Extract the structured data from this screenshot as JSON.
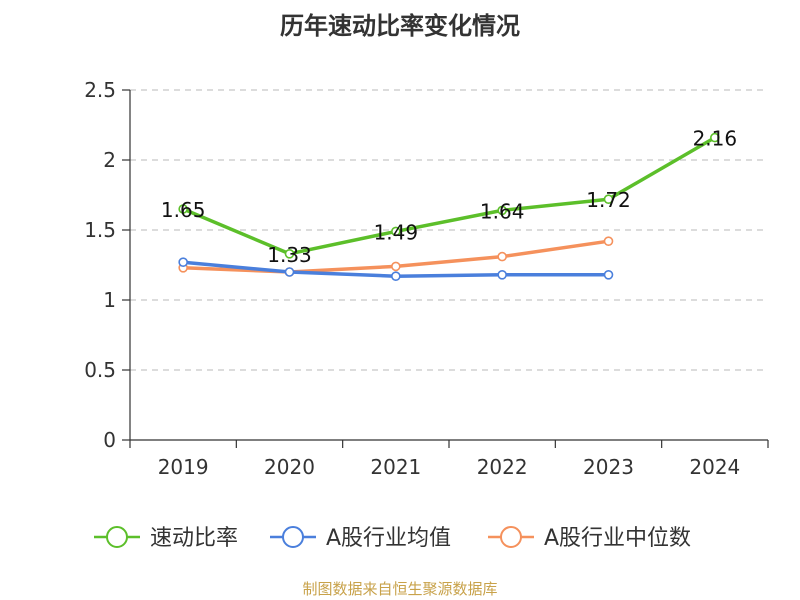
{
  "chart_data": {
    "type": "line",
    "title": "历年速动比率变化情况",
    "categories": [
      "2019",
      "2020",
      "2021",
      "2022",
      "2023",
      "2024"
    ],
    "ylim": [
      0,
      2.5
    ],
    "yticks": [
      "0",
      "0.5",
      "1",
      "1.5",
      "2",
      "2.5"
    ],
    "grid": true,
    "legend_position": "bottom",
    "series": [
      {
        "name": "速动比率",
        "color": "#5cbf2a",
        "values": [
          1.65,
          1.33,
          1.49,
          1.64,
          1.72,
          2.16
        ],
        "labels": [
          "1.65",
          "1.33",
          "1.49",
          "1.64",
          "1.72",
          "2.16"
        ]
      },
      {
        "name": "A股行业均值",
        "color": "#4a7fdc",
        "values": [
          1.27,
          1.2,
          1.17,
          1.18,
          1.18,
          null
        ]
      },
      {
        "name": "A股行业中位数",
        "color": "#f5915c",
        "values": [
          1.23,
          1.2,
          1.24,
          1.31,
          1.42,
          null
        ]
      }
    ],
    "source": "制图数据来自恒生聚源数据库"
  }
}
